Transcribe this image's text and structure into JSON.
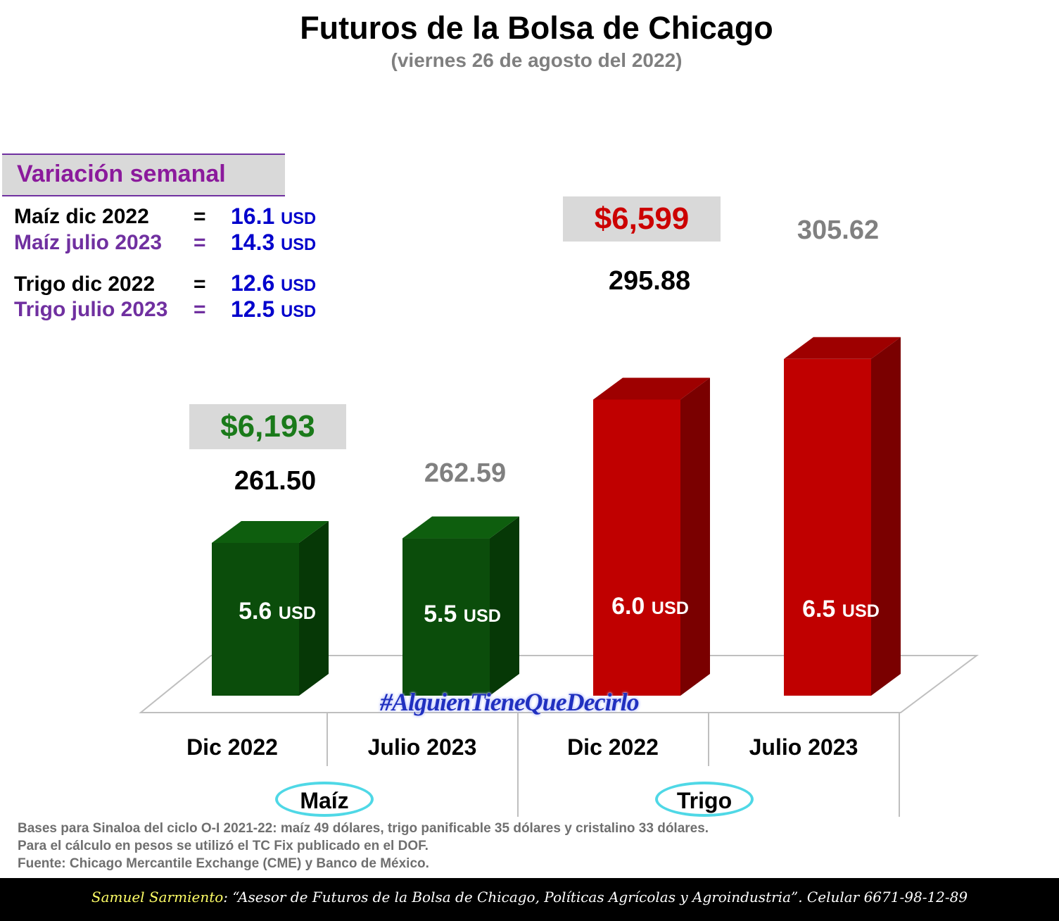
{
  "header": {
    "title": "Futuros de la Bolsa de Chicago",
    "subtitle": "(viernes 26 de agosto del 2022)"
  },
  "weekly": {
    "title": "Variación semanal",
    "rows": [
      {
        "label": "Maíz dic 2022",
        "eq": "=",
        "value": "16.1",
        "unit": "USD"
      },
      {
        "label": "Maíz julio 2023",
        "eq": "=",
        "value": "14.3",
        "unit": "USD"
      },
      {
        "label": "Trigo dic 2022",
        "eq": "=",
        "value": "12.6",
        "unit": "USD"
      },
      {
        "label": "Trigo julio 2023",
        "eq": "=",
        "value": "12.5",
        "unit": "USD"
      }
    ]
  },
  "prices": {
    "maiz": "$6,193",
    "trigo": "$6,599"
  },
  "chart_data": {
    "type": "bar",
    "title": "Futuros de la Bolsa de Chicago",
    "subtitle": "(viernes 26 de agosto del 2022)",
    "categories": [
      "Dic 2022",
      "Julio 2023",
      "Dic 2022",
      "Julio 2023"
    ],
    "groups": [
      "Maíz",
      "Trigo"
    ],
    "values": [
      261.5,
      262.59,
      295.88,
      305.62
    ],
    "value_labels": [
      "261.50",
      "262.59",
      "295.88",
      "305.62"
    ],
    "bar_labels": [
      {
        "value": "5.6",
        "unit": "USD"
      },
      {
        "value": "5.5",
        "unit": "USD"
      },
      {
        "value": "6.0",
        "unit": "USD"
      },
      {
        "value": "6.5",
        "unit": "USD"
      }
    ],
    "colors": {
      "maiz_front": "#0b4d0b",
      "maiz_side": "#063806",
      "maiz_top": "#0e5e0e",
      "trigo_front": "#c00000",
      "trigo_side": "#7a0000",
      "trigo_top": "#9e0000",
      "label_dark": "#000000",
      "label_gray": "#808080",
      "price_maiz": "#1a7a1a",
      "price_trigo": "#cc0000"
    },
    "ylim": [
      230,
      310
    ]
  },
  "watermark": "#AlguienTieneQueDecirlo",
  "notes": [
    "Bases para Sinaloa del ciclo O-I 2021-22: maíz 49 dólares, trigo panificable 35 dólares y cristalino 33 dólares.",
    "Para el cálculo en pesos se utilizó el TC Fix publicado en el DOF.",
    "Fuente: Chicago Mercantile Exchange (CME) y Banco de México."
  ],
  "footer": {
    "name": "Samuel Sarmiento",
    "rest": ": “Asesor de Futuros de la Bolsa de Chicago, Políticas Agrícolas y Agroindustria”. Celular 6671-98-12-89"
  }
}
